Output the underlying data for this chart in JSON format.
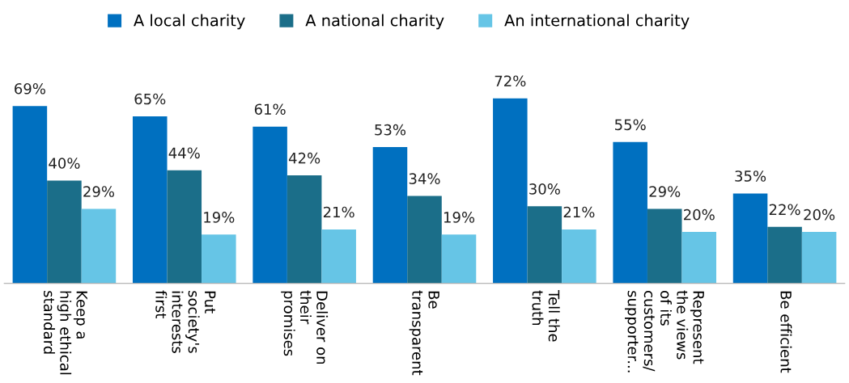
{
  "chart_data": {
    "type": "bar",
    "categories": [
      "Keep a\nhigh ethical\nstandard",
      "Put\nsociety's\ninterests\nfirst",
      "Deliver on\ntheir\npromises",
      "Be\ntransparent",
      "Tell the\ntruth",
      "Represent\nthe views\nof its\ncustomers/\nsupporter...",
      "Be efficient"
    ],
    "series": [
      {
        "name": "A local charity",
        "color": "#0070c0",
        "values": [
          69,
          65,
          61,
          53,
          72,
          55,
          35
        ],
        "value_labels": [
          "69%",
          "65%",
          "61%",
          "53%",
          "72%",
          "55%",
          "35%"
        ]
      },
      {
        "name": "A national charity",
        "color": "#1b6e89",
        "values": [
          40,
          44,
          42,
          34,
          30,
          29,
          22
        ],
        "value_labels": [
          "40%",
          "44%",
          "42%",
          "34%",
          "30%",
          "29%",
          "22%"
        ]
      },
      {
        "name": "An international charity",
        "color": "#66c5e6",
        "values": [
          29,
          19,
          21,
          19,
          21,
          20,
          20
        ],
        "value_labels": [
          "29%",
          "19%",
          "21%",
          "19%",
          "21%",
          "20%",
          "20%"
        ]
      }
    ],
    "legend": "top",
    "grid": false
  }
}
